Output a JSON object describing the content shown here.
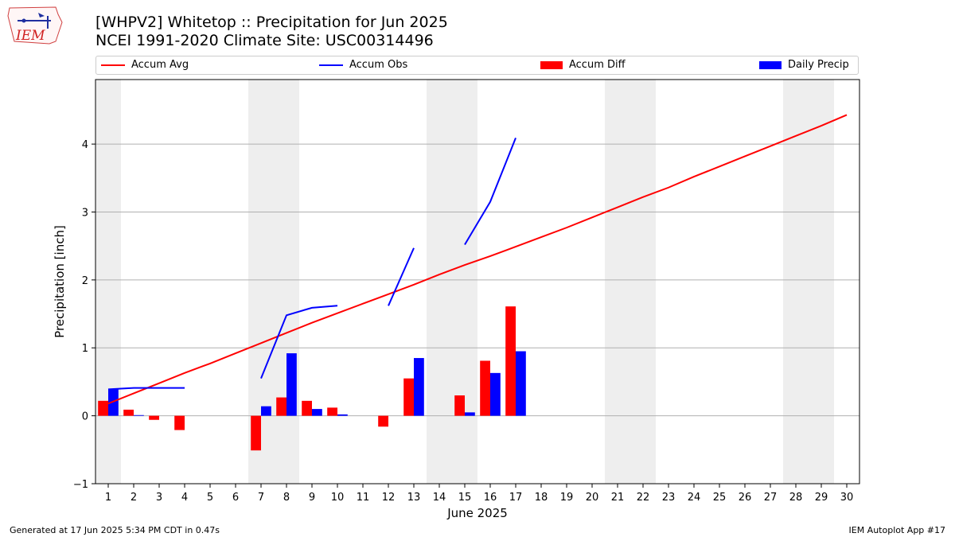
{
  "header": {
    "title_line1": "[WHPV2] Whitetop :: Precipitation for Jun 2025",
    "title_line2": "NCEI 1991-2020 Climate Site: USC00314496"
  },
  "logo": {
    "text": "IEM"
  },
  "footer": {
    "left": "Generated at 17 Jun 2025 5:34 PM CDT in 0.47s",
    "right": "IEM Autoplot App #17"
  },
  "colors": {
    "avg": "#ff0000",
    "obs": "#0000ff",
    "diff": "#ff0000",
    "daily": "#0000ff",
    "weekend": "#eeeeee",
    "grid": "#b0b0b0"
  },
  "chart_data": {
    "type": "bar",
    "xlabel": "June 2025",
    "ylabel": "Precipitation [inch]",
    "xlim": [
      0.5,
      30.5
    ],
    "ylim": [
      -1.0,
      4.95
    ],
    "x_ticks": [
      1,
      2,
      3,
      4,
      5,
      6,
      7,
      8,
      9,
      10,
      11,
      12,
      13,
      14,
      15,
      16,
      17,
      18,
      19,
      20,
      21,
      22,
      23,
      24,
      25,
      26,
      27,
      28,
      29,
      30
    ],
    "y_ticks": [
      -1,
      0,
      1,
      2,
      3,
      4
    ],
    "grid": "y",
    "weekend_bands": [
      [
        0.5,
        1.5
      ],
      [
        6.5,
        8.5
      ],
      [
        13.5,
        15.5
      ],
      [
        20.5,
        22.5
      ],
      [
        27.5,
        29.5
      ]
    ],
    "legend": {
      "placement": "top",
      "entries": [
        "Accum Avg",
        "Accum Obs",
        "Accum Diff",
        "Daily Precip"
      ]
    },
    "series": [
      {
        "name": "Accum Avg",
        "kind": "line",
        "x": [
          1,
          2,
          3,
          4,
          5,
          6,
          7,
          8,
          9,
          10,
          11,
          12,
          13,
          14,
          15,
          16,
          17,
          18,
          19,
          20,
          21,
          22,
          23,
          24,
          25,
          26,
          27,
          28,
          29,
          30
        ],
        "values": [
          0.18,
          0.33,
          0.48,
          0.63,
          0.77,
          0.92,
          1.07,
          1.22,
          1.37,
          1.51,
          1.65,
          1.79,
          1.93,
          2.08,
          2.22,
          2.35,
          2.49,
          2.63,
          2.77,
          2.92,
          3.07,
          3.22,
          3.36,
          3.52,
          3.67,
          3.82,
          3.97,
          4.12,
          4.27,
          4.43
        ]
      },
      {
        "name": "Accum Obs",
        "kind": "line",
        "segments": [
          {
            "x": [
              1,
              2,
              3,
              4
            ],
            "values": [
              0.39,
              0.41,
              0.41,
              0.41
            ]
          },
          {
            "x": [
              7,
              8,
              9,
              10
            ],
            "values": [
              0.55,
              1.48,
              1.59,
              1.62
            ]
          },
          {
            "x": [
              12,
              13
            ],
            "values": [
              1.62,
              2.47
            ]
          },
          {
            "x": [
              15,
              16,
              17
            ],
            "values": [
              2.52,
              3.15,
              4.09
            ]
          }
        ]
      },
      {
        "name": "Accum Diff",
        "kind": "bar",
        "x": [
          1,
          2,
          3,
          4,
          7,
          8,
          9,
          10,
          12,
          13,
          15,
          16,
          17
        ],
        "values": [
          0.22,
          0.09,
          -0.06,
          -0.21,
          -0.51,
          0.27,
          0.22,
          0.12,
          -0.16,
          0.55,
          0.3,
          0.81,
          1.61
        ]
      },
      {
        "name": "Daily Precip",
        "kind": "bar",
        "x": [
          1,
          2,
          7,
          8,
          9,
          10,
          13,
          15,
          16,
          17
        ],
        "values": [
          0.39,
          0.01,
          0.14,
          0.92,
          0.1,
          0.02,
          0.85,
          0.05,
          0.63,
          0.95
        ]
      }
    ]
  }
}
